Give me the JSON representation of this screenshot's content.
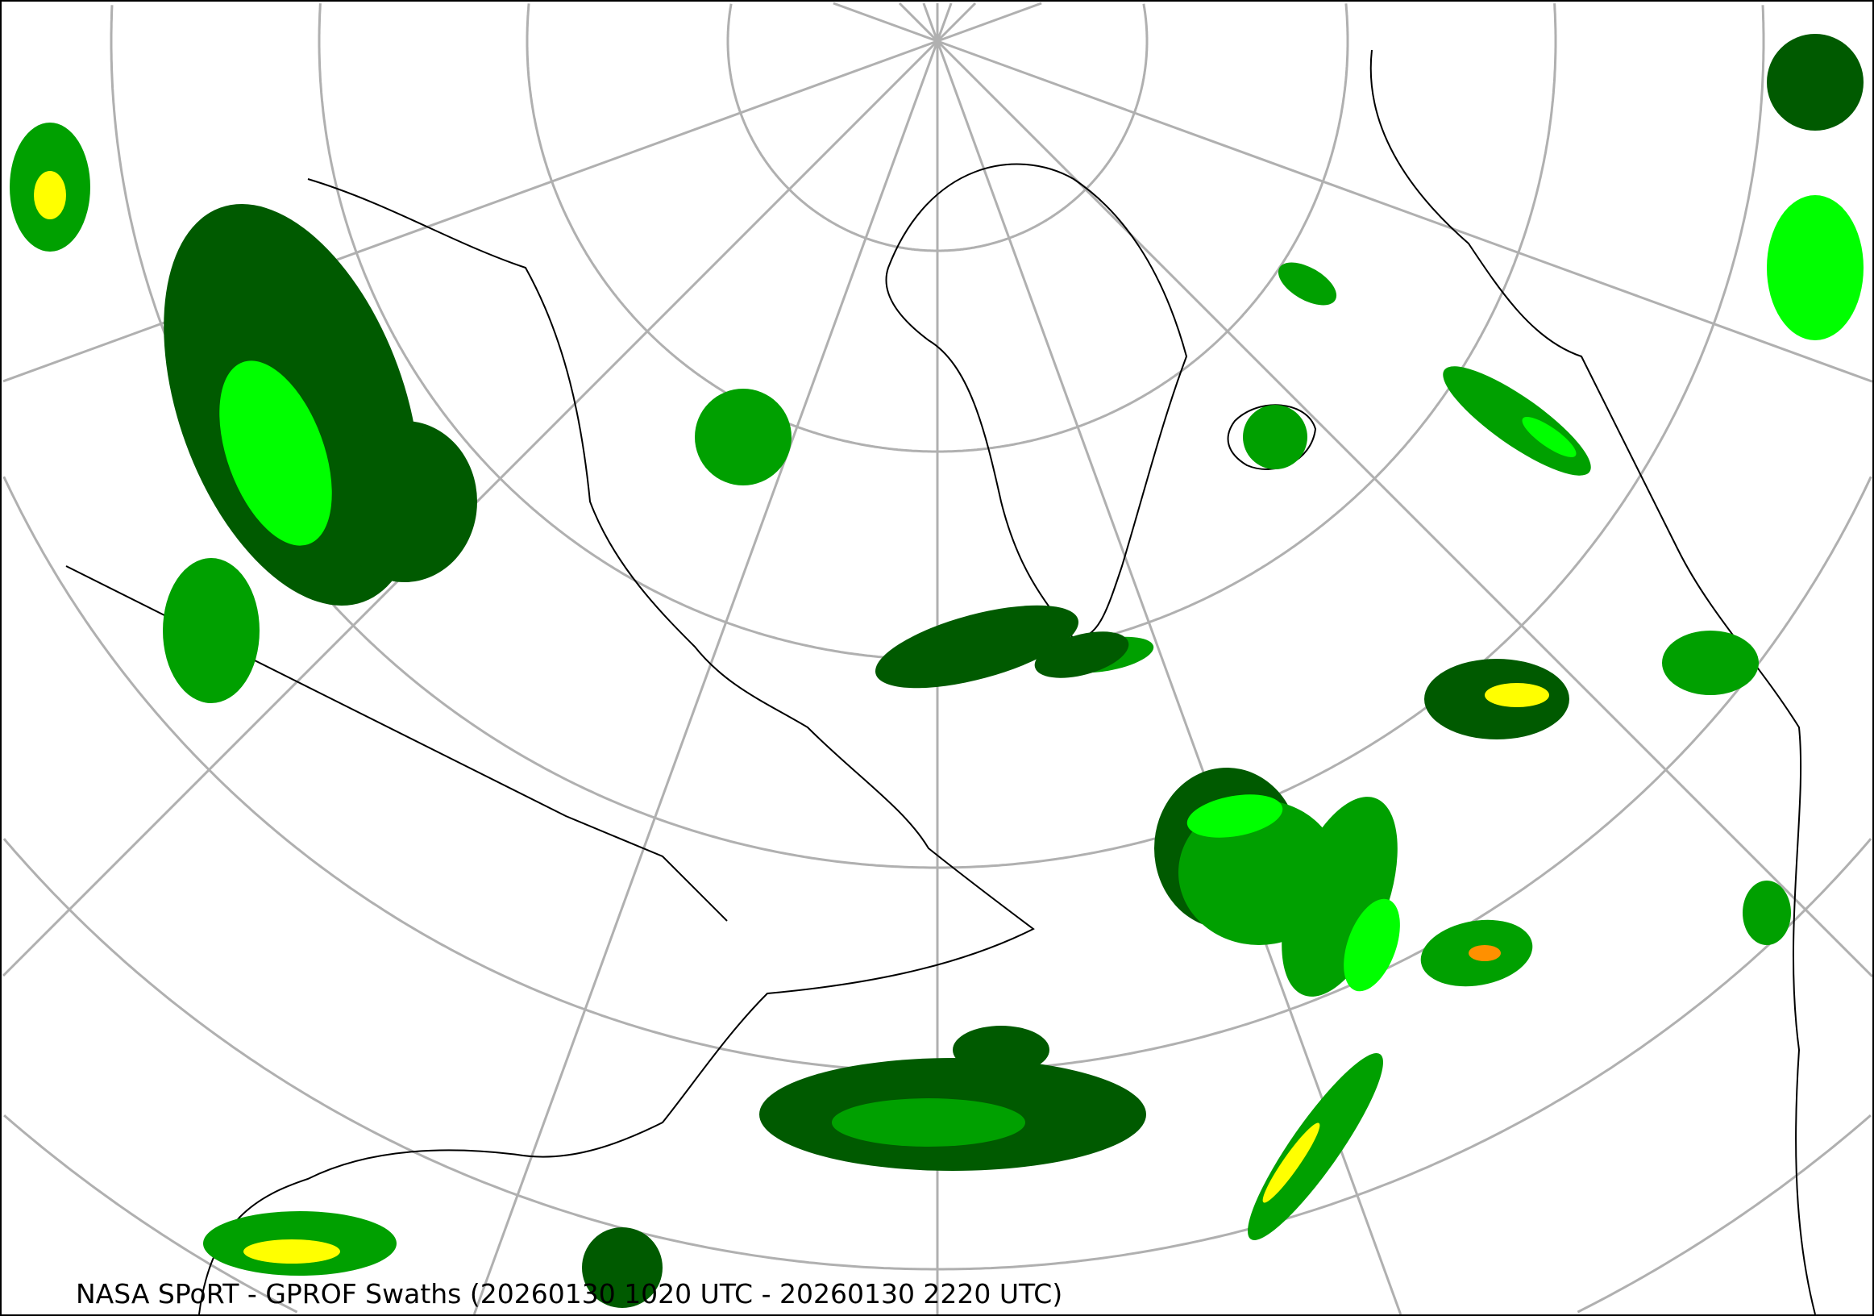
{
  "title": "NASA SPoRT - GPROF Swaths (20260130 1020 UTC - 20260130 2220 UTC)",
  "colors": {
    "graticule": "#b0b0b0",
    "coastline": "#000000",
    "precip_light": "#005a00",
    "precip_moderate": "#00a000",
    "precip_heavy": "#00ff00",
    "precip_very_heavy": "#ffff00",
    "precip_extreme": "#ff9000"
  }
}
